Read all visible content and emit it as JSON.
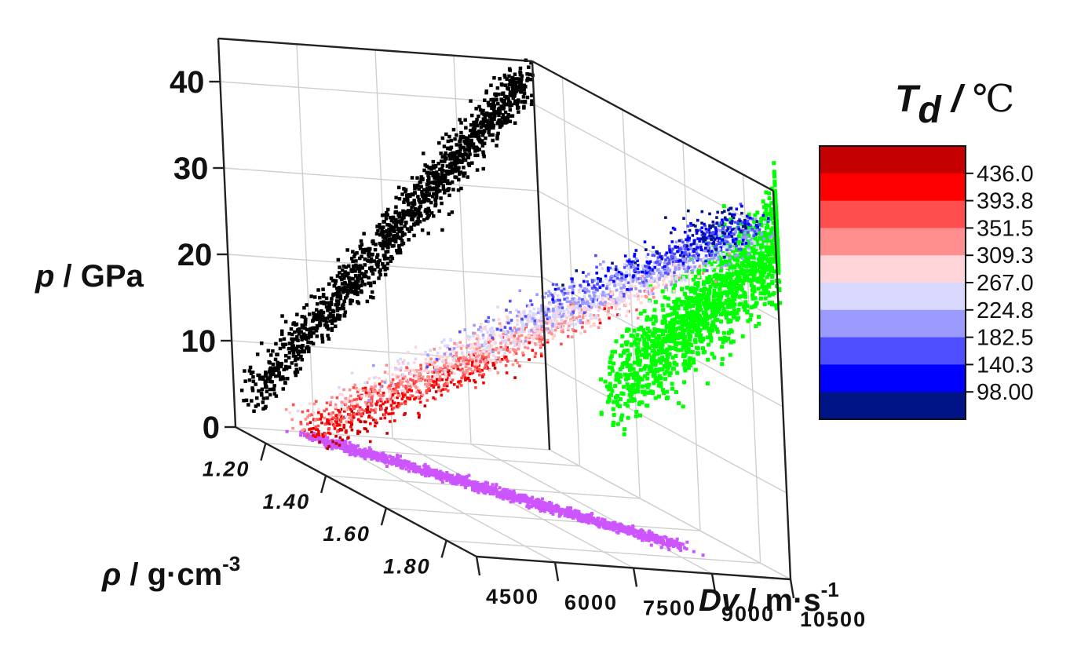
{
  "chart_data": {
    "type": "scatter",
    "projection": "3d",
    "axes": {
      "x": {
        "label_symbol": "ρ",
        "label_unit": "g·cm",
        "label_exp": "-3",
        "range": [
          1.1,
          1.9
        ],
        "ticks": [
          "1.20",
          "1.40",
          "1.60",
          "1.80"
        ],
        "tick_values": [
          1.2,
          1.4,
          1.6,
          1.8
        ]
      },
      "y": {
        "label_symbol": "Dv",
        "label_unit": "m·s",
        "label_exp": "-1",
        "range": [
          4500,
          10500
        ],
        "ticks": [
          "4500",
          "6000",
          "7500",
          "9000",
          "10500"
        ],
        "tick_values": [
          4500,
          6000,
          7500,
          9000,
          10500
        ]
      },
      "z": {
        "label_symbol": "p",
        "label_unit": "GPa",
        "range": [
          0,
          45
        ],
        "ticks": [
          "0",
          "10",
          "20",
          "30",
          "40"
        ],
        "tick_values": [
          0,
          10,
          20,
          30,
          40
        ]
      }
    },
    "grid": true,
    "colorbar": {
      "title_symbol": "T",
      "title_sub": "d",
      "title_unit": "℃",
      "levels": [
        "436.0",
        "393.8",
        "351.5",
        "309.3",
        "267.0",
        "224.8",
        "182.5",
        "140.3",
        "98.00"
      ],
      "colors": [
        "#c40000",
        "#ff0000",
        "#ff4d4d",
        "#ff8f8f",
        "#ffd4d8",
        "#d8d8ff",
        "#9a9aff",
        "#4f4fff",
        "#0000ff",
        "#001488"
      ],
      "placement": "right"
    },
    "series": [
      {
        "role": "main",
        "color_by": "Td",
        "trend": [
          {
            "rho": 1.15,
            "dv": 5600,
            "p": 1,
            "td": 420
          },
          {
            "rho": 1.95,
            "dv": 9800,
            "p": 42,
            "td": 140
          }
        ]
      },
      {
        "role": "projection-back-wall",
        "plane": "rho = 1.10",
        "color": "#000000",
        "trend": [
          {
            "dv": 4700,
            "p": 3
          },
          {
            "dv": 10300,
            "p": 43
          }
        ]
      },
      {
        "role": "projection-right-wall",
        "plane": "Dv = 10500",
        "color": "#00ff00",
        "trend": [
          {
            "rho": 1.3,
            "p": 10
          },
          {
            "rho": 1.95,
            "p": 42
          }
        ]
      },
      {
        "role": "projection-floor",
        "plane": "p = 0",
        "color": "#cc55ff",
        "trend": [
          {
            "rho": 1.12,
            "dv": 5800
          },
          {
            "rho": 1.7,
            "dv": 9400
          }
        ]
      }
    ]
  }
}
